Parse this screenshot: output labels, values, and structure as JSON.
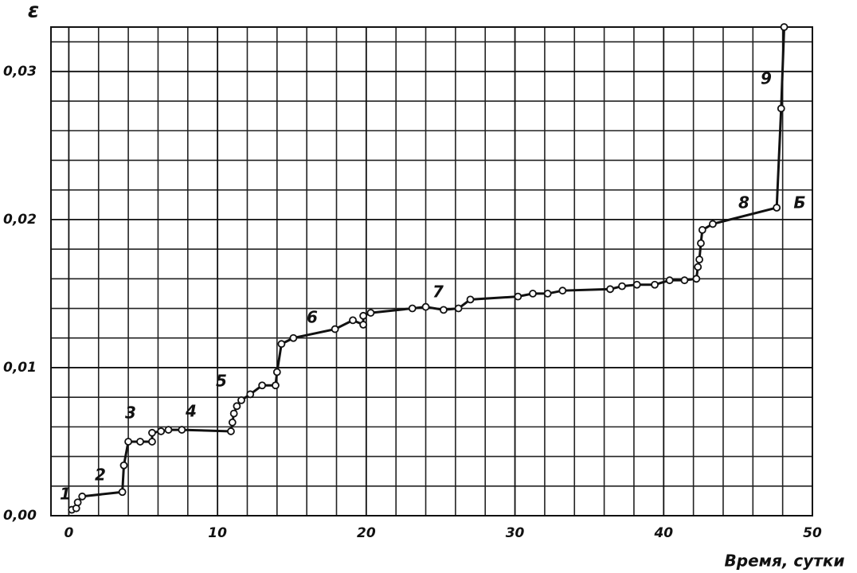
{
  "chart_data": {
    "type": "line",
    "x_label": "Время, сутки",
    "y_label": "ε",
    "xlim": [
      -1.2,
      50
    ],
    "ylim": [
      0,
      0.033
    ],
    "xticks": [
      0,
      10,
      20,
      30,
      40,
      50
    ],
    "yticks": [
      {
        "value": 0,
        "label": "0,00"
      },
      {
        "value": 0.01,
        "label": "0,01"
      },
      {
        "value": 0.02,
        "label": "0,02"
      },
      {
        "value": 0.03,
        "label": "0,03"
      }
    ],
    "grid": true,
    "series": [
      {
        "color": "#111111",
        "x": [
          0.2,
          0.5,
          0.6,
          0.9,
          3.6,
          3.7,
          4.0,
          4.8,
          5.6,
          5.6,
          6.2,
          6.7,
          7.6,
          10.9,
          11.0,
          11.1,
          11.3,
          11.6,
          12.2,
          13.0,
          13.9,
          14.0,
          14.3,
          15.1,
          17.9,
          19.1,
          19.8,
          19.8,
          20.3,
          23.1,
          24.0,
          25.2,
          26.2,
          27.0,
          30.2,
          31.2,
          32.2,
          33.2,
          36.4,
          37.2,
          38.2,
          39.4,
          40.4,
          41.4,
          42.2,
          42.3,
          42.4,
          42.5,
          42.6,
          43.3,
          47.6,
          47.9,
          48.1
        ],
        "values": [
          0.0004,
          0.0005,
          0.0009,
          0.0013,
          0.0016,
          0.0034,
          0.005,
          0.005,
          0.005,
          0.0056,
          0.0057,
          0.0058,
          0.0058,
          0.0057,
          0.0063,
          0.0069,
          0.0074,
          0.0078,
          0.0082,
          0.0088,
          0.0088,
          0.0097,
          0.0116,
          0.012,
          0.0126,
          0.0132,
          0.0129,
          0.0135,
          0.0137,
          0.014,
          0.0141,
          0.0139,
          0.014,
          0.0146,
          0.0148,
          0.015,
          0.015,
          0.0152,
          0.0153,
          0.0155,
          0.0156,
          0.0156,
          0.0159,
          0.0159,
          0.016,
          0.0168,
          0.0173,
          0.0184,
          0.0193,
          0.0197,
          0.0208,
          0.0275,
          0.033
        ]
      }
    ],
    "annotations": [
      "1",
      "2",
      "3",
      "4",
      "5",
      "6",
      "7",
      "8",
      "9",
      "Б"
    ]
  }
}
